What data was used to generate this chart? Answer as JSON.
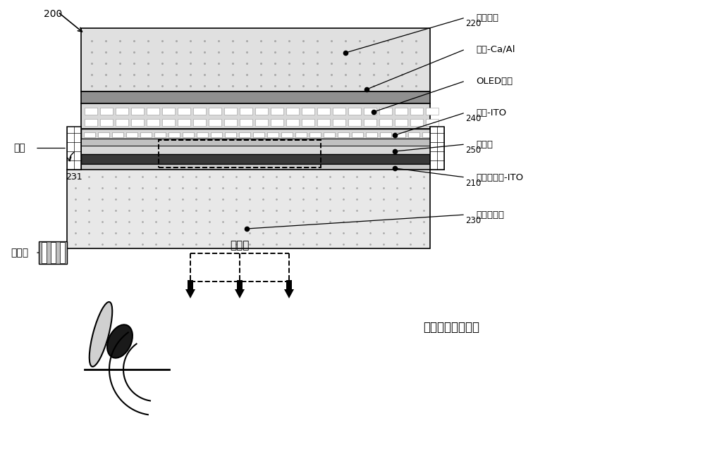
{
  "bg_color": "#ffffff",
  "labels": {
    "top_glass": "上盖玻璃",
    "cathode": "阴极-Ca/Al",
    "oled": "OLED堆叠",
    "anode_ito": "阳极-ITO",
    "insulator": "绝缘体",
    "touch_ito": "触摸传感器-ITO",
    "bottom_glass": "下基板玻璃",
    "adhesive": "胶合",
    "polarizer": "偏振器",
    "light_dir": "光方向",
    "unit_sensor": "单元内触摸传感器",
    "num_200": "200",
    "num_220": "220",
    "num_231": "231",
    "num_240": "240",
    "num_250": "250",
    "num_210": "210",
    "num_230": "230"
  },
  "colors": {
    "top_glass_fill": "#e0e0e0",
    "cathode_fill": "#909090",
    "oled_fill": "#d8d8d8",
    "anode_fill": "#c8c8c8",
    "insulator_light1": "#c0c0c0",
    "insulator_light2": "#d0d0d0",
    "insulator_dark": "#383838",
    "touch_fill": "#b8b8b8",
    "bottom_glass_fill": "#e8e8e8",
    "polarizer_fill": "#b0b0b0",
    "adhesive_fill": "#ffffff",
    "black": "#000000",
    "gray_dot": "#888888"
  }
}
